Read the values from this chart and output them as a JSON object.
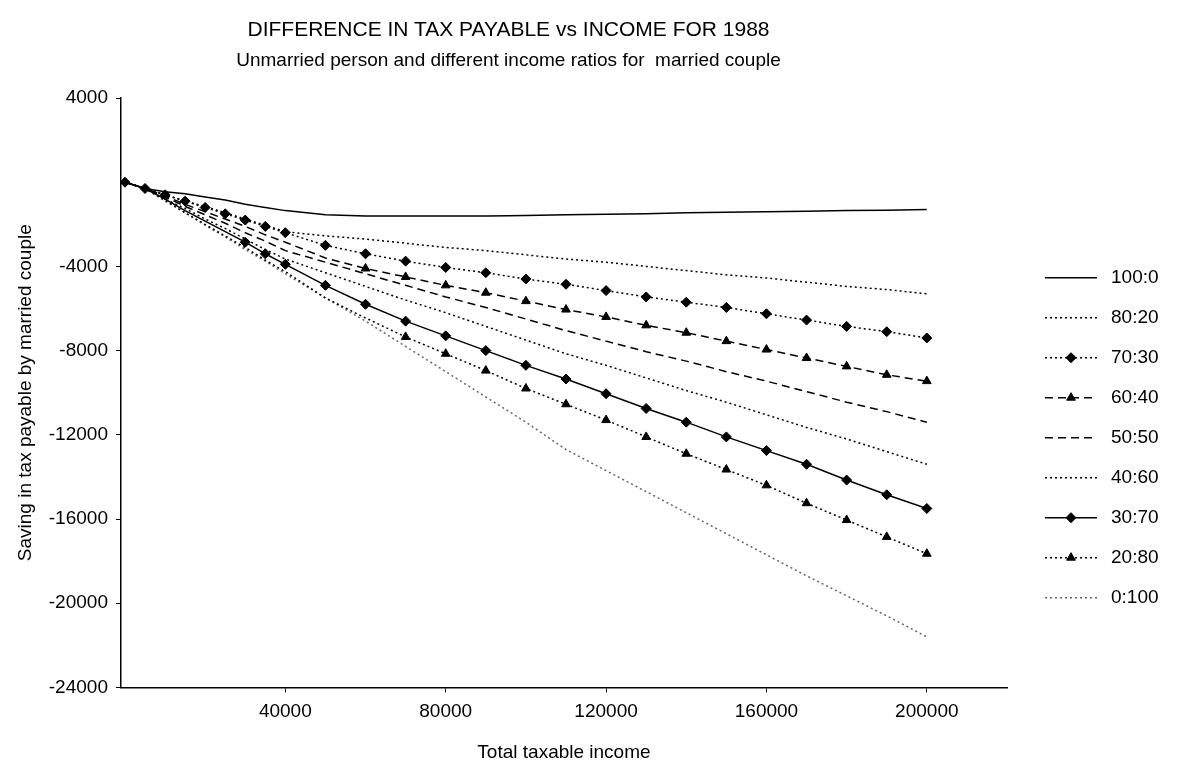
{
  "chart_data": {
    "type": "line",
    "title": "DIFFERENCE IN TAX PAYABLE vs INCOME FOR 1988",
    "subtitle": "Unmarried person and different income ratios for  married couple",
    "xlabel": "Total taxable income",
    "ylabel": "Saving in tax payable by married couple",
    "x": [
      0,
      5000,
      10000,
      15000,
      20000,
      25000,
      30000,
      35000,
      40000,
      50000,
      60000,
      70000,
      80000,
      90000,
      100000,
      110000,
      120000,
      130000,
      140000,
      150000,
      160000,
      170000,
      180000,
      190000,
      200000
    ],
    "series": [
      {
        "name": "100:0",
        "color": "#000000",
        "line_style": "solid",
        "marker": "none",
        "values": [
          0,
          -300,
          -450,
          -550,
          -700,
          -850,
          -1050,
          -1200,
          -1350,
          -1550,
          -1600,
          -1600,
          -1600,
          -1600,
          -1580,
          -1550,
          -1520,
          -1500,
          -1450,
          -1430,
          -1400,
          -1380,
          -1350,
          -1330,
          -1300
        ]
      },
      {
        "name": "80:20",
        "color": "#000000",
        "line_style": "dotted",
        "marker": "none",
        "values": [
          0,
          -300,
          -600,
          -900,
          -1150,
          -1450,
          -1750,
          -2050,
          -2350,
          -2550,
          -2700,
          -2900,
          -3100,
          -3250,
          -3450,
          -3650,
          -3800,
          -4000,
          -4200,
          -4400,
          -4550,
          -4750,
          -4950,
          -5100,
          -5300
        ]
      },
      {
        "name": "70:30",
        "color": "#000000",
        "line_style": "dotted",
        "marker": "diamond",
        "values": [
          0,
          -300,
          -600,
          -900,
          -1200,
          -1500,
          -1800,
          -2100,
          -2400,
          -3000,
          -3400,
          -3750,
          -4050,
          -4300,
          -4600,
          -4850,
          -5150,
          -5450,
          -5700,
          -5950,
          -6250,
          -6550,
          -6850,
          -7100,
          -7400
        ]
      },
      {
        "name": "60:40",
        "color": "#000000",
        "line_style": "dashed",
        "marker": "triangle",
        "values": [
          0,
          -300,
          -650,
          -1050,
          -1400,
          -1750,
          -2100,
          -2500,
          -2850,
          -3600,
          -4100,
          -4500,
          -4900,
          -5250,
          -5650,
          -6050,
          -6400,
          -6800,
          -7150,
          -7550,
          -7950,
          -8350,
          -8750,
          -9150,
          -9450
        ]
      },
      {
        "name": "50:50",
        "color": "#000000",
        "line_style": "dashed",
        "marker": "none",
        "values": [
          0,
          -300,
          -700,
          -1150,
          -1550,
          -1950,
          -2400,
          -2800,
          -3250,
          -3800,
          -4350,
          -4900,
          -5450,
          -5950,
          -6500,
          -7050,
          -7550,
          -8050,
          -8500,
          -9000,
          -9450,
          -9950,
          -10450,
          -10900,
          -11400
        ]
      },
      {
        "name": "40:60",
        "color": "#000000",
        "line_style": "dotted",
        "marker": "none",
        "values": [
          0,
          -300,
          -800,
          -1250,
          -1750,
          -2200,
          -2700,
          -3200,
          -3650,
          -4300,
          -4950,
          -5600,
          -6200,
          -6850,
          -7500,
          -8150,
          -8700,
          -9300,
          -9900,
          -10450,
          -11050,
          -11650,
          -12200,
          -12800,
          -13400
        ]
      },
      {
        "name": "30:70",
        "color": "#000000",
        "line_style": "solid",
        "marker": "diamond",
        "values": [
          0,
          -300,
          -800,
          -1350,
          -1850,
          -2350,
          -2850,
          -3400,
          -3900,
          -4900,
          -5800,
          -6600,
          -7300,
          -8000,
          -8700,
          -9350,
          -10050,
          -10750,
          -11400,
          -12100,
          -12750,
          -13400,
          -14150,
          -14850,
          -15500
        ]
      },
      {
        "name": "20:80",
        "color": "#000000",
        "line_style": "dotted",
        "marker": "triangle",
        "values": [
          0,
          -300,
          -850,
          -1450,
          -2000,
          -2550,
          -3100,
          -3700,
          -4250,
          -5500,
          -6450,
          -7350,
          -8150,
          -8950,
          -9800,
          -10550,
          -11300,
          -12100,
          -12900,
          -13650,
          -14400,
          -15250,
          -16050,
          -16850,
          -17650
        ]
      },
      {
        "name": "0:100",
        "color": "#666666",
        "line_style": "dotted",
        "marker": "none",
        "values": [
          0,
          -300,
          -900,
          -1450,
          -2050,
          -2600,
          -3200,
          -3750,
          -4350,
          -5500,
          -6600,
          -7800,
          -9000,
          -10200,
          -11400,
          -12700,
          -13700,
          -14700,
          -15700,
          -16700,
          -17700,
          -18700,
          -19650,
          -20600,
          -21600
        ]
      }
    ],
    "xlim": [
      -1000,
      220000
    ],
    "xticks": [
      40000,
      80000,
      120000,
      160000,
      200000
    ],
    "ylim": [
      -24000,
      4000
    ],
    "yticks": [
      4000,
      -4000,
      -8000,
      -12000,
      -16000,
      -20000,
      -24000
    ],
    "grid": false,
    "legend": "right"
  }
}
